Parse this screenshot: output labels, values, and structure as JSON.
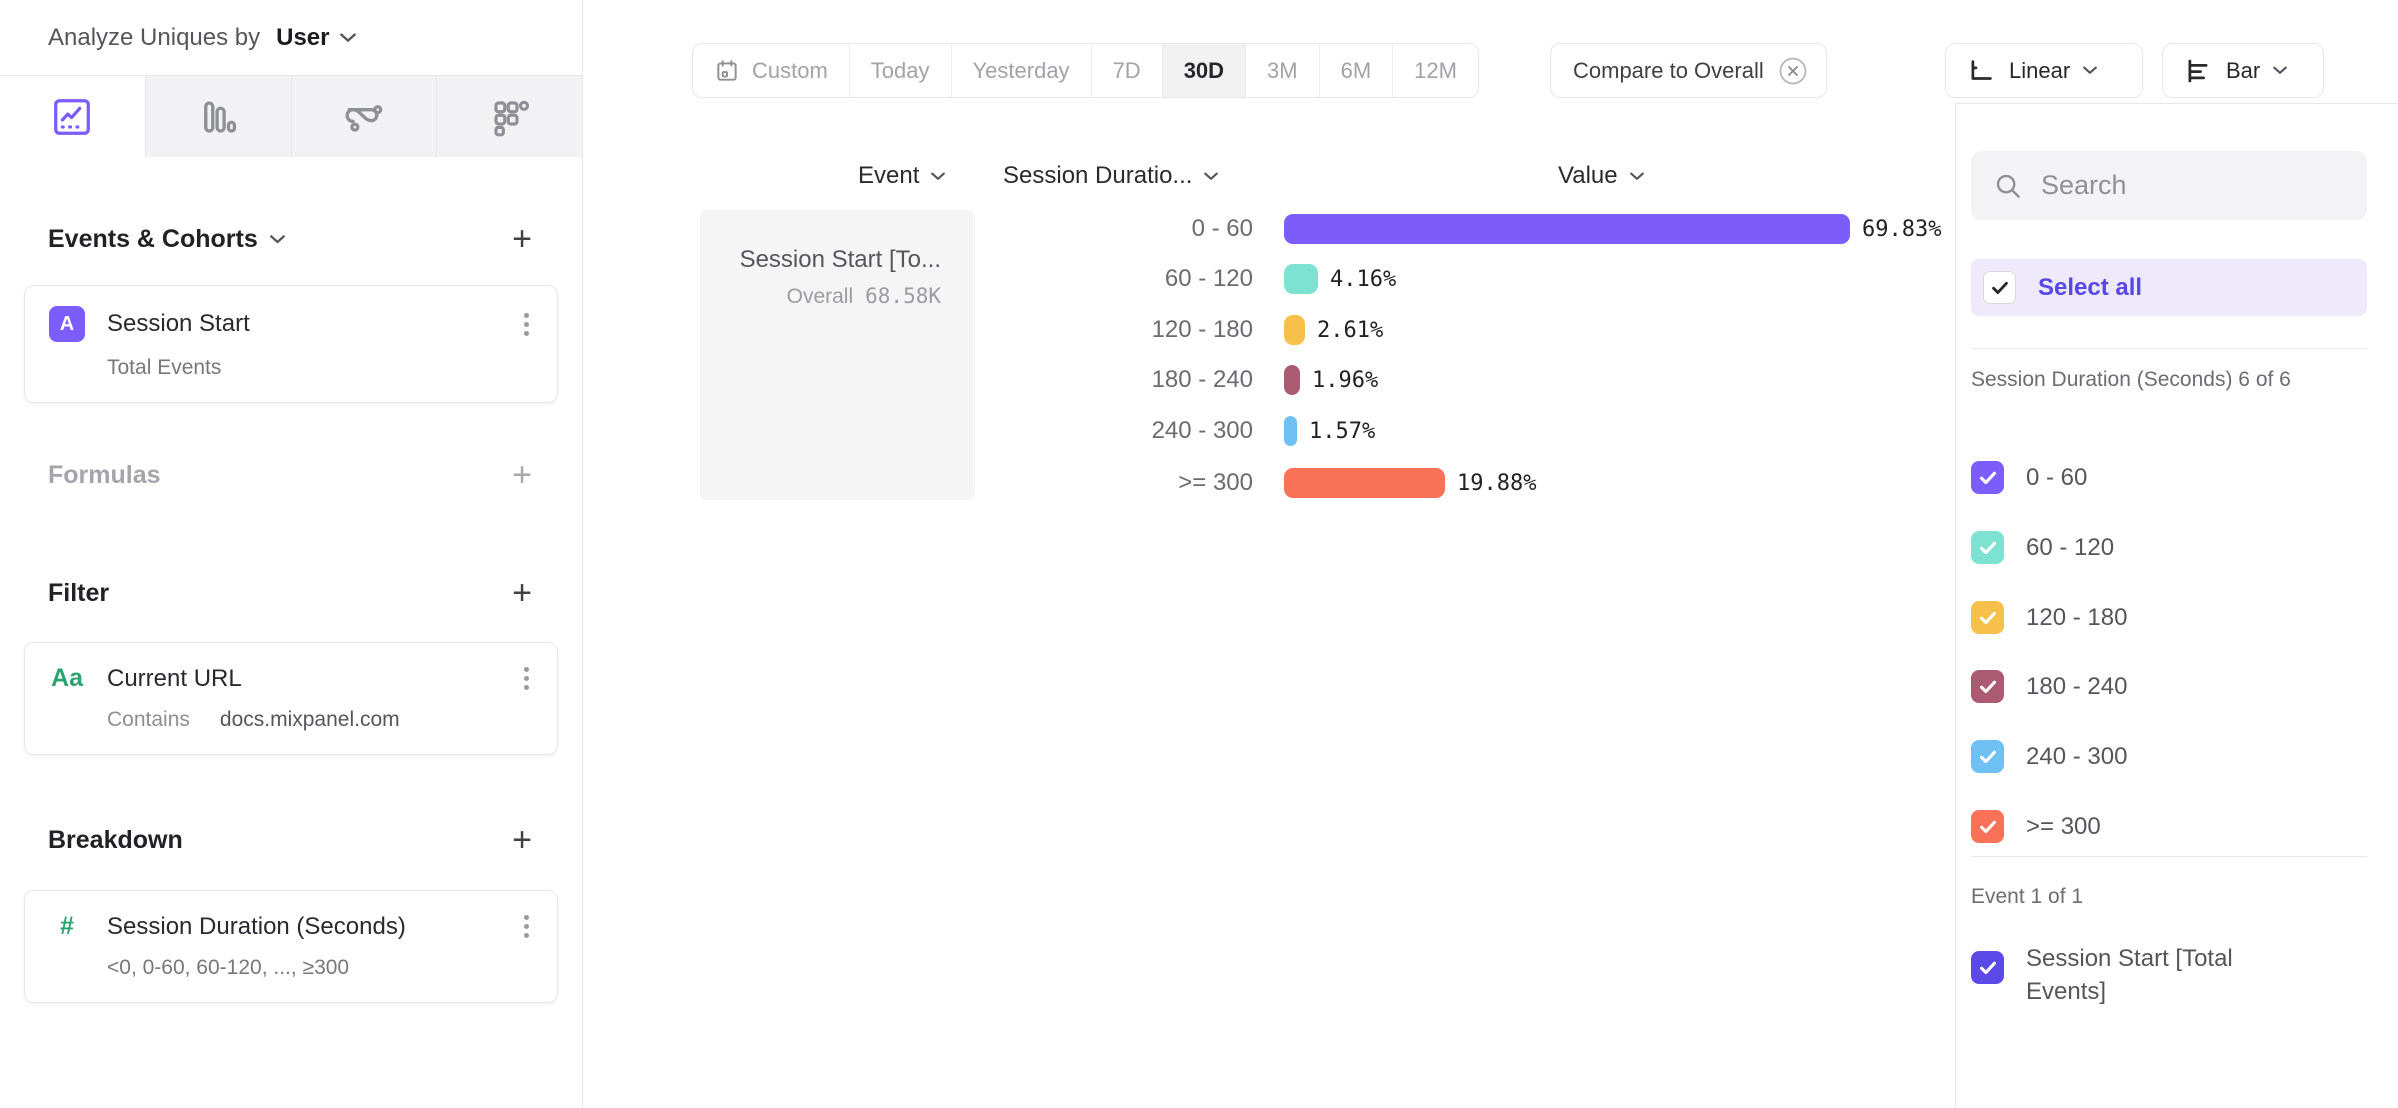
{
  "sidebar": {
    "analyze_label": "Analyze Uniques by",
    "analyze_value": "User",
    "sections": {
      "events": {
        "title": "Events & Cohorts"
      },
      "formulas": {
        "title": "Formulas"
      },
      "filter": {
        "title": "Filter"
      },
      "breakdown": {
        "title": "Breakdown"
      }
    },
    "event_card": {
      "badge": "A",
      "title": "Session Start",
      "metric": "Total Events"
    },
    "filter_card": {
      "icon_label": "Aa",
      "title": "Current URL",
      "operator": "Contains",
      "value": "docs.mixpanel.com"
    },
    "breakdown_card": {
      "icon_label": "#",
      "title": "Session Duration (Seconds)",
      "buckets": "<0, 0-60, 60-120, ..., ≥300"
    }
  },
  "toolbar": {
    "ranges": [
      "Custom",
      "Today",
      "Yesterday",
      "7D",
      "30D",
      "3M",
      "6M",
      "12M"
    ],
    "selected_range": "30D",
    "compare": "Compare to Overall",
    "chart_scale": "Linear",
    "chart_type": "Bar"
  },
  "chart_data": {
    "type": "bar",
    "orientation": "horizontal",
    "columns": [
      "Event",
      "Session Duratio...",
      "Value"
    ],
    "event_cell": {
      "title": "Session Start [To...",
      "overall_label": "Overall",
      "overall_value": "68.58K"
    },
    "categories": [
      "0 - 60",
      "60 - 120",
      "120 - 180",
      "180 - 240",
      "240 - 300",
      ">= 300"
    ],
    "values": [
      69.83,
      4.16,
      2.61,
      1.96,
      1.57,
      19.88
    ],
    "unit": "%",
    "xlim": [
      0,
      75
    ],
    "rows": [
      {
        "label": "0 - 60",
        "value": 69.83,
        "display": "69.83%",
        "color": "#7c5cfa"
      },
      {
        "label": "60 - 120",
        "value": 4.16,
        "display": "4.16%",
        "color": "#7de2d1"
      },
      {
        "label": "120 - 180",
        "value": 2.61,
        "display": "2.61%",
        "color": "#f6c04a"
      },
      {
        "label": "180 - 240",
        "value": 1.96,
        "display": "1.96%",
        "color": "#aa5b72"
      },
      {
        "label": "240 - 300",
        "value": 1.57,
        "display": "1.57%",
        "color": "#6fc0f3"
      },
      {
        "label": ">= 300",
        "value": 19.88,
        "display": "19.88%",
        "color": "#f97156"
      }
    ]
  },
  "panel": {
    "search_placeholder": "Search",
    "select_all": "Select all",
    "group_breakdown": "Session Duration (Seconds) 6 of 6",
    "group_event": "Event 1 of 1",
    "items": [
      {
        "label": "0 - 60",
        "color": "#7c5cfa",
        "checked": true
      },
      {
        "label": "60 - 120",
        "color": "#7de2d1",
        "checked": true
      },
      {
        "label": "120 - 180",
        "color": "#f6c04a",
        "checked": true
      },
      {
        "label": "180 - 240",
        "color": "#aa5b72",
        "checked": true
      },
      {
        "label": "240 - 300",
        "color": "#6fc0f3",
        "checked": true
      },
      {
        "label": ">= 300",
        "color": "#f97156",
        "checked": true
      }
    ],
    "event_item": {
      "label": "Session Start [Total Events]",
      "color": "#5b4ae8",
      "checked": true
    }
  }
}
